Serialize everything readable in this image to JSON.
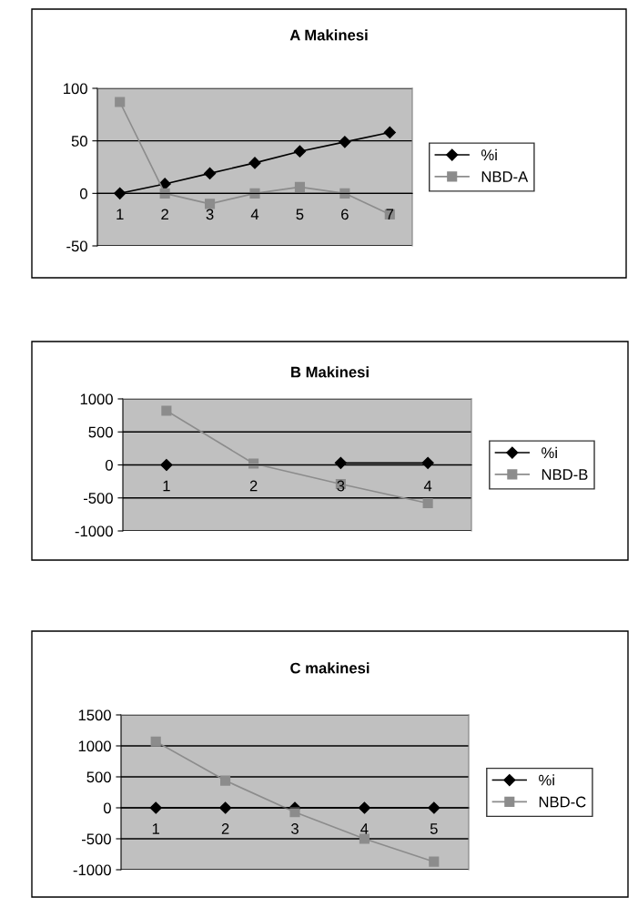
{
  "chart_data": [
    {
      "type": "line",
      "title": "A Makinesi",
      "categories": [
        "1",
        "2",
        "3",
        "4",
        "5",
        "6",
        "7"
      ],
      "ylim": [
        -50,
        100
      ],
      "yticks": [
        -50,
        0,
        50,
        100
      ],
      "grid": "y",
      "legend": "right",
      "series": [
        {
          "name": "%i",
          "color": "#000000",
          "marker": "diamond",
          "values": [
            0,
            9,
            19,
            29,
            40,
            49,
            58
          ]
        },
        {
          "name": "NBD-A",
          "color": "#8c8c8c",
          "marker": "square",
          "values": [
            87,
            0,
            -10,
            0,
            6,
            0,
            -20
          ]
        }
      ]
    },
    {
      "type": "line",
      "title": "B Makinesi",
      "categories": [
        "1",
        "2",
        "3",
        "4"
      ],
      "ylim": [
        -1000,
        1000
      ],
      "yticks": [
        -1000,
        -500,
        0,
        500,
        1000
      ],
      "grid": "y",
      "legend": "right",
      "series": [
        {
          "name": "%i",
          "color": "#000000",
          "marker": "diamond",
          "values": [
            0,
            null,
            30,
            30
          ]
        },
        {
          "name": "NBD-B",
          "color": "#8c8c8c",
          "marker": "square",
          "values": [
            820,
            20,
            -290,
            -580
          ]
        }
      ]
    },
    {
      "type": "line",
      "title": "C makinesi",
      "categories": [
        "1",
        "2",
        "3",
        "4",
        "5"
      ],
      "ylim": [
        -1000,
        1500
      ],
      "yticks": [
        -1000,
        -500,
        0,
        500,
        1000,
        1500
      ],
      "grid": "y",
      "legend": "right",
      "series": [
        {
          "name": "%i",
          "color": "#000000",
          "marker": "diamond",
          "values": [
            0,
            0,
            0,
            0,
            0
          ]
        },
        {
          "name": "NBD-C",
          "color": "#8c8c8c",
          "marker": "square",
          "values": [
            1070,
            440,
            -70,
            -500,
            -870
          ]
        }
      ]
    }
  ]
}
